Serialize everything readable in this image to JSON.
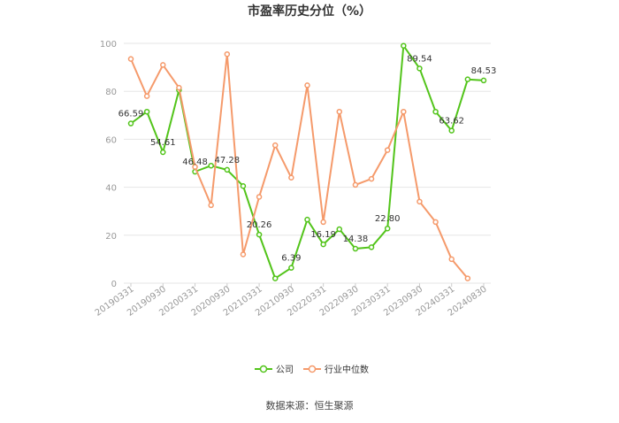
{
  "chart_data": {
    "type": "line",
    "title": "市盈率历史分位（%）",
    "ylim": [
      0,
      100
    ],
    "y_ticks": [
      0,
      20,
      40,
      60,
      80,
      100
    ],
    "grid": true,
    "legend_position": "bottom",
    "x": [
      "20190331",
      "20190630",
      "20190930",
      "20191231",
      "20200331",
      "20200630",
      "20200930",
      "20201231",
      "20210331",
      "20210630",
      "20210930",
      "20211231",
      "20220331",
      "20220630",
      "20220930",
      "20221231",
      "20230331",
      "20230630",
      "20230930",
      "20231231",
      "20240331",
      "20240630",
      "20240830"
    ],
    "x_tick_labels": [
      "20190331",
      "20190930",
      "20200331",
      "20200930",
      "20210331",
      "20210930",
      "20220331",
      "20220930",
      "20230331",
      "20230930",
      "20240331",
      "20240830"
    ],
    "series": [
      {
        "name": "公司",
        "color": "#52c41a",
        "values": [
          66.59,
          71.5,
          54.61,
          80.5,
          46.48,
          49.0,
          47.28,
          40.5,
          20.26,
          2.0,
          6.39,
          26.5,
          16.19,
          22.5,
          14.38,
          15.0,
          22.8,
          99.0,
          89.54,
          71.5,
          63.62,
          85.0,
          84.53
        ],
        "data_labels": {
          "0": "66.59",
          "2": "54.61",
          "4": "46.48",
          "6": "47.28",
          "8": "20.26",
          "10": "6.39",
          "12": "16.19",
          "14": "14.38",
          "16": "22.80",
          "18": "89.54",
          "20": "63.62",
          "22": "84.53"
        }
      },
      {
        "name": "行业中位数",
        "color": "#f59a6b",
        "values": [
          93.5,
          78.0,
          91.0,
          81.5,
          48.5,
          32.5,
          95.5,
          12.0,
          36.0,
          57.5,
          44.0,
          82.5,
          25.5,
          71.5,
          41.0,
          43.5,
          55.5,
          71.5,
          34.0,
          25.5,
          10.0,
          2.0,
          null
        ]
      }
    ]
  },
  "source_text": "数据来源：恒生聚源"
}
